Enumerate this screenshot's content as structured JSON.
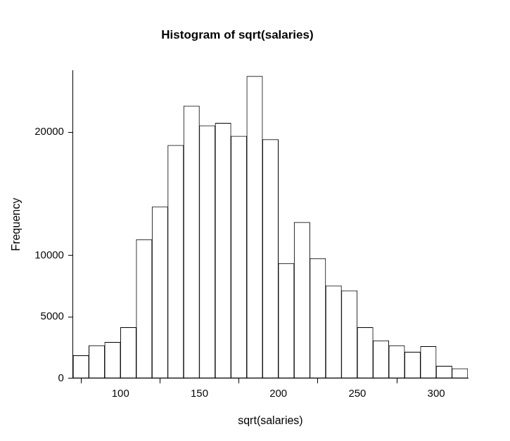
{
  "chart_data": {
    "type": "histogram",
    "title": "Histogram of sqrt(salaries)",
    "x_label": "sqrt(salaries)",
    "y_label": "Frequency",
    "bins": [
      70,
      80,
      90,
      100,
      110,
      120,
      130,
      140,
      150,
      160,
      170,
      180,
      190,
      200,
      210,
      220,
      230,
      240,
      250,
      260,
      270,
      280,
      290,
      300,
      310,
      320
    ],
    "values": [
      1850,
      2670,
      2930,
      4130,
      11270,
      13930,
      18930,
      22130,
      20530,
      20730,
      19670,
      24530,
      19400,
      9330,
      12670,
      9730,
      7530,
      7130,
      4130,
      3070,
      2670,
      2130,
      2600,
      1000,
      800
    ],
    "color": "#ffffff",
    "xlim": [
      70,
      320
    ],
    "xticks": [
      100,
      150,
      200,
      250,
      300
    ],
    "ylim": [
      0,
      25000
    ],
    "yticks": [
      0,
      5000,
      10000,
      {
        "value": 15000,
        "label": null
      },
      20000,
      {
        "value": 25000,
        "label": null
      }
    ],
    "grid": false
  }
}
